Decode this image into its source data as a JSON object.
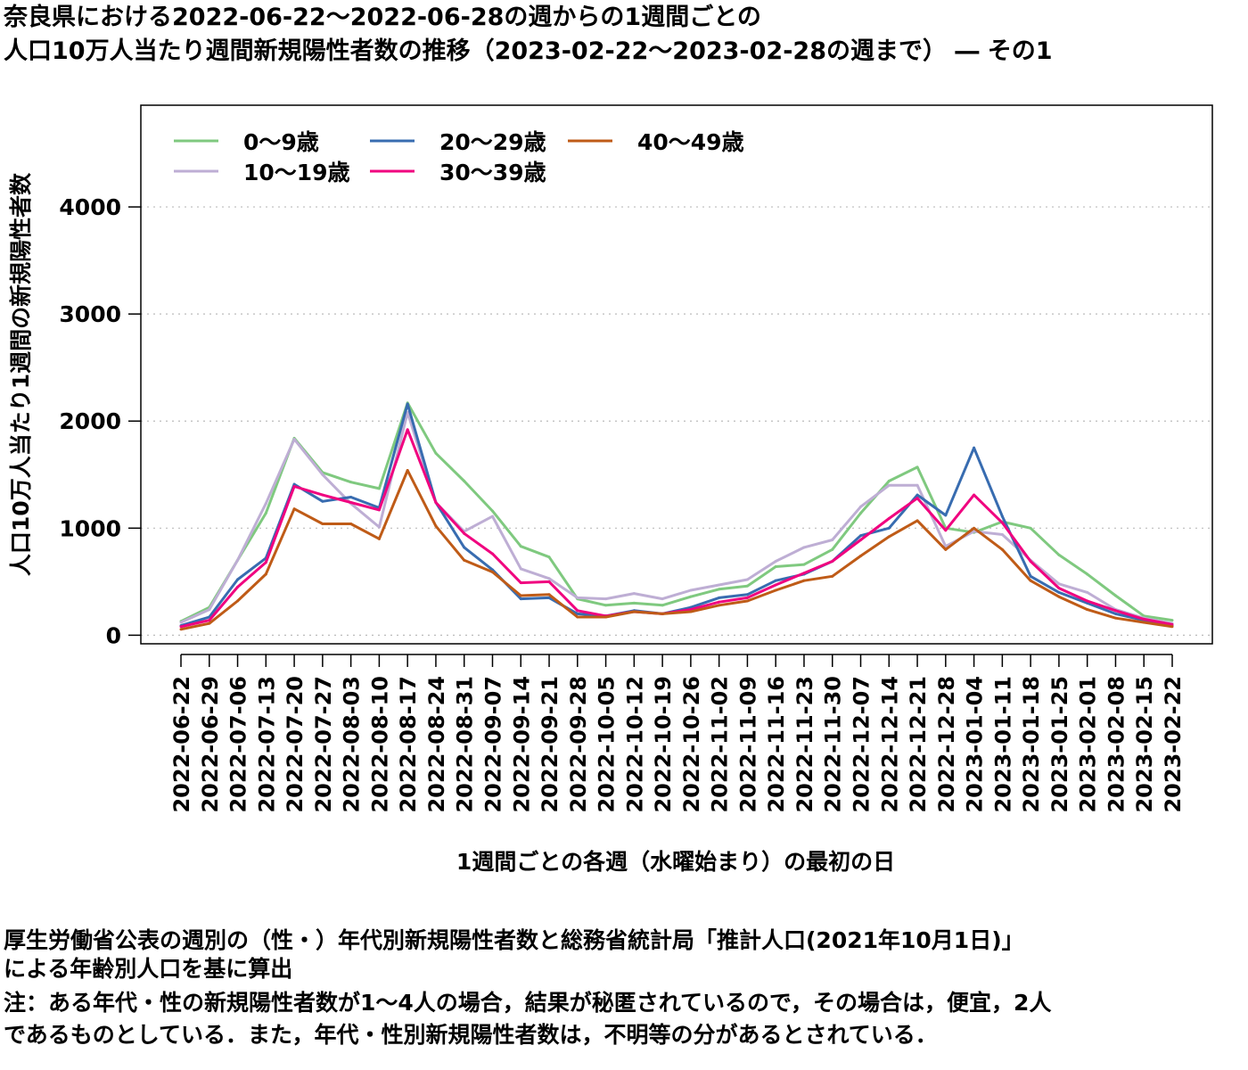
{
  "title": {
    "line1": "奈良県における2022-06-22～2022-06-28の週からの1週間ごとの",
    "line2": "人口10万人当たり週間新規陽性者数の推移（2023-02-22～2023-02-28の週まで） ― その1"
  },
  "notes": {
    "line1": "厚生労働省公表の週別の（性・）年代別新規陽性者数と総務省統計局「推計人口(2021年10月1日)」",
    "line2": "による年齢別人口を基に算出",
    "line3": "注：ある年代・性の新規陽性者数が1～4人の場合，結果が秘匿されているので，その場合は，便宜，2人",
    "line4": "であるものとしている．また，年代・性別新規陽性者数は，不明等の分があるとされている．"
  },
  "chart_data": {
    "type": "line",
    "xlabel": "1週間ごとの各週（水曜始まり）の最初の日",
    "ylabel": "人口10万人当たり1週間の新規陽性者数",
    "ylim": [
      -80,
      4950
    ],
    "yticks": [
      0,
      1000,
      2000,
      3000,
      4000
    ],
    "grid": true,
    "legend_position": "top-left",
    "categories": [
      "2022-06-22",
      "2022-06-29",
      "2022-07-06",
      "2022-07-13",
      "2022-07-20",
      "2022-07-27",
      "2022-08-03",
      "2022-08-10",
      "2022-08-17",
      "2022-08-24",
      "2022-08-31",
      "2022-09-07",
      "2022-09-14",
      "2022-09-21",
      "2022-09-28",
      "2022-10-05",
      "2022-10-12",
      "2022-10-19",
      "2022-10-26",
      "2022-11-02",
      "2022-11-09",
      "2022-11-16",
      "2022-11-23",
      "2022-11-30",
      "2022-12-07",
      "2022-12-14",
      "2022-12-21",
      "2022-12-28",
      "2023-01-04",
      "2023-01-11",
      "2023-01-18",
      "2023-01-25",
      "2023-02-01",
      "2023-02-08",
      "2023-02-15",
      "2023-02-22"
    ],
    "series": [
      {
        "name": "0～9歳",
        "color": "#7fc97f",
        "values": [
          130,
          260,
          700,
          1140,
          1840,
          1520,
          1430,
          1370,
          2170,
          1700,
          1440,
          1160,
          830,
          730,
          340,
          280,
          300,
          280,
          360,
          430,
          460,
          640,
          660,
          800,
          1140,
          1440,
          1570,
          1000,
          960,
          1060,
          1000,
          750,
          570,
          370,
          180,
          140
        ]
      },
      {
        "name": "10～19歳",
        "color": "#beaed4",
        "values": [
          120,
          240,
          700,
          1230,
          1830,
          1500,
          1230,
          1010,
          2080,
          1240,
          970,
          1110,
          620,
          530,
          350,
          340,
          390,
          340,
          420,
          470,
          520,
          690,
          820,
          890,
          1200,
          1400,
          1400,
          830,
          970,
          940,
          700,
          480,
          400,
          240,
          160,
          110
        ]
      },
      {
        "name": "20～29歳",
        "color": "#386cb0",
        "values": [
          90,
          170,
          520,
          720,
          1410,
          1250,
          1290,
          1190,
          2160,
          1240,
          820,
          610,
          340,
          350,
          200,
          180,
          230,
          200,
          260,
          350,
          380,
          510,
          570,
          690,
          930,
          1000,
          1310,
          1120,
          1750,
          1110,
          550,
          400,
          300,
          200,
          140,
          90
        ]
      },
      {
        "name": "30～39歳",
        "color": "#f0027f",
        "values": [
          80,
          140,
          450,
          680,
          1390,
          1310,
          1240,
          1170,
          1920,
          1240,
          950,
          760,
          490,
          500,
          230,
          180,
          220,
          200,
          240,
          310,
          350,
          470,
          580,
          690,
          890,
          1090,
          1280,
          980,
          1310,
          1050,
          690,
          440,
          320,
          230,
          150,
          100
        ]
      },
      {
        "name": "40～49歳",
        "color": "#bf5b17",
        "values": [
          55,
          110,
          320,
          570,
          1180,
          1040,
          1040,
          900,
          1540,
          1020,
          700,
          590,
          370,
          380,
          170,
          170,
          220,
          200,
          220,
          280,
          320,
          420,
          510,
          550,
          740,
          920,
          1070,
          800,
          1000,
          800,
          510,
          360,
          240,
          160,
          120,
          80
        ]
      }
    ]
  }
}
